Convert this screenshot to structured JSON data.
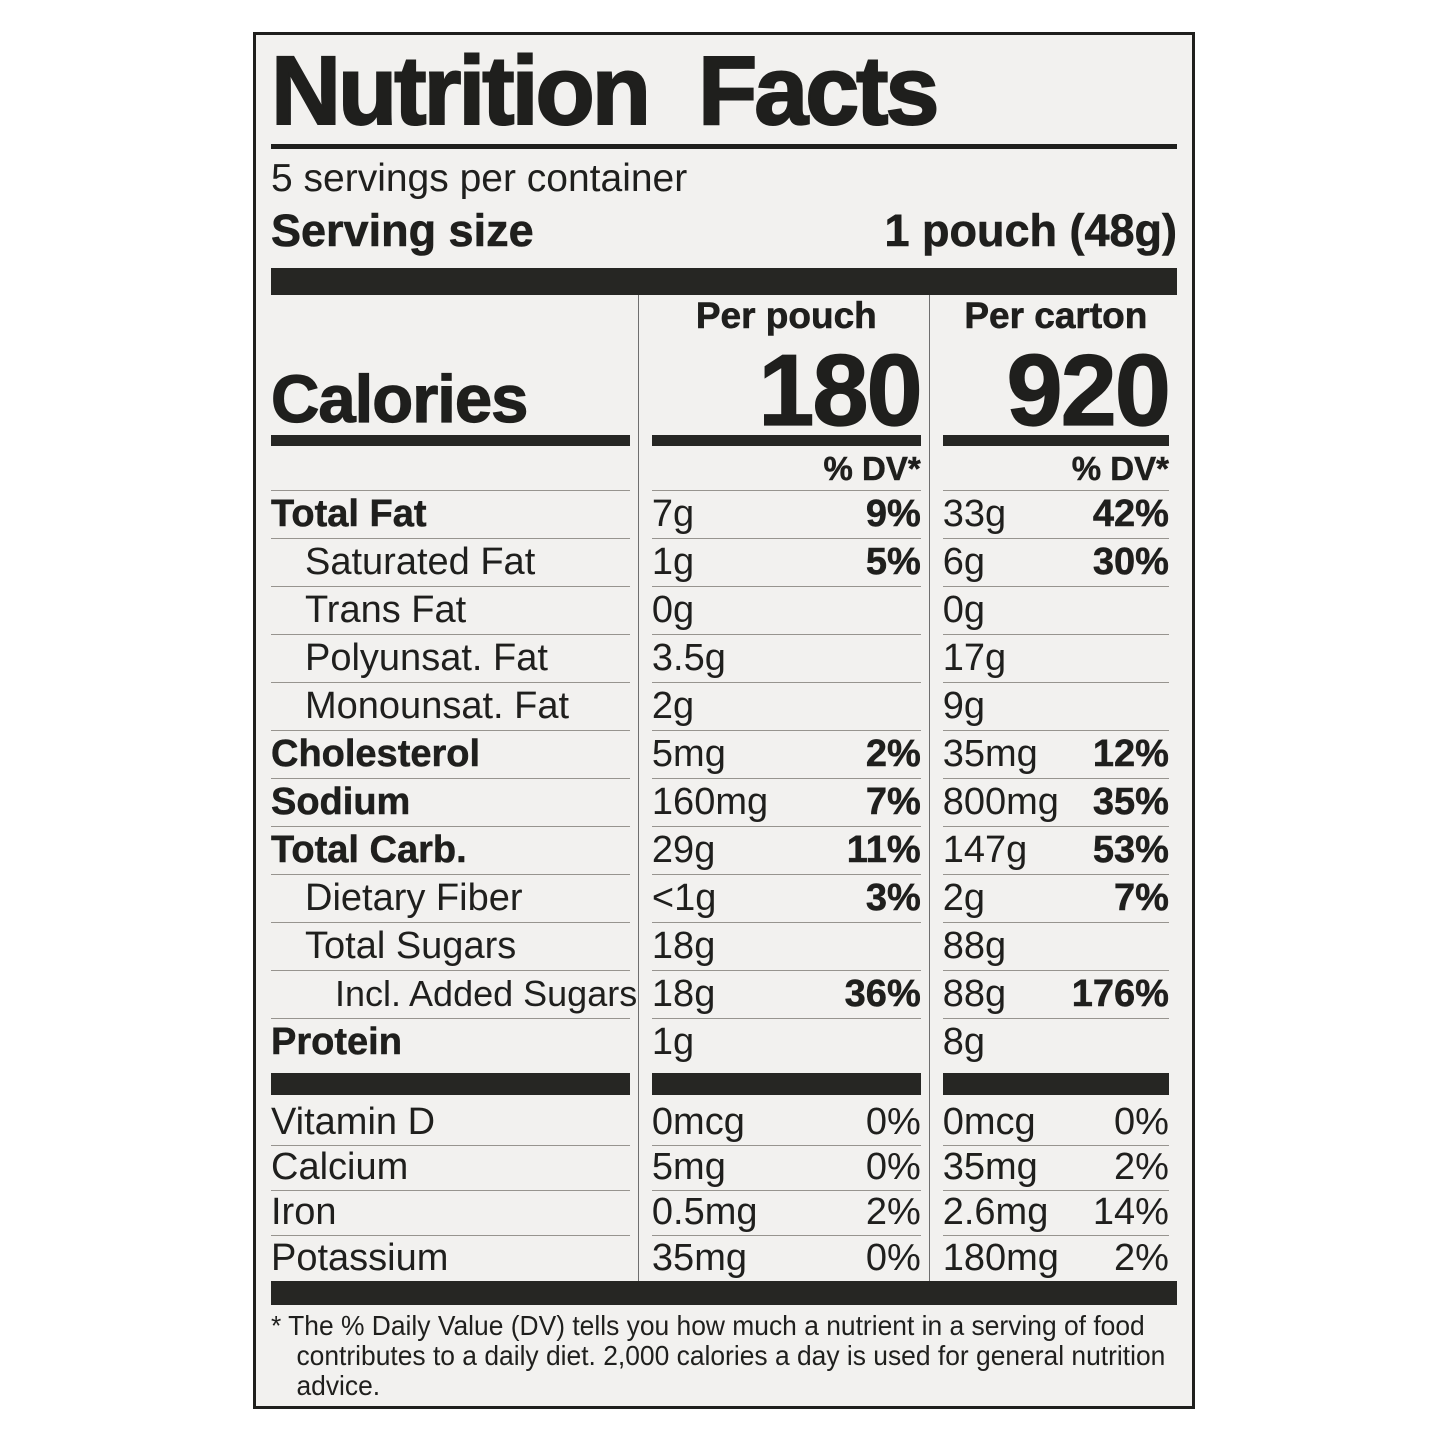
{
  "colors": {
    "label_background": "#f2f1ef",
    "ink": "#1f1f1d",
    "hairline": "#97948f",
    "divider": "#6f6f6f",
    "thick_bar": "#262623"
  },
  "label": {
    "title": "Nutrition Facts",
    "servings_per_container": "5 servings per container",
    "serving_size_label": "Serving size",
    "serving_size_value": "1 pouch (48g)",
    "calories": {
      "label": "Calories",
      "pouch": {
        "header": "Per pouch",
        "value": "180",
        "dv_header": "% DV*"
      },
      "carton": {
        "header": "Per carton",
        "value": "920",
        "dv_header": "% DV*"
      }
    },
    "nutrients": [
      {
        "name": "Total Fat",
        "pouch_amount": "7g",
        "pouch_dv": "9%",
        "carton_amount": "33g",
        "carton_dv": "42%"
      },
      {
        "name": "Saturated Fat",
        "pouch_amount": "1g",
        "pouch_dv": "5%",
        "carton_amount": "6g",
        "carton_dv": "30%"
      },
      {
        "name": "Trans Fat",
        "pouch_amount": "0g",
        "pouch_dv": "",
        "carton_amount": "0g",
        "carton_dv": ""
      },
      {
        "name": "Polyunsat. Fat",
        "pouch_amount": "3.5g",
        "pouch_dv": "",
        "carton_amount": "17g",
        "carton_dv": ""
      },
      {
        "name": "Monounsat. Fat",
        "pouch_amount": "2g",
        "pouch_dv": "",
        "carton_amount": "9g",
        "carton_dv": ""
      },
      {
        "name": "Cholesterol",
        "pouch_amount": "5mg",
        "pouch_dv": "2%",
        "carton_amount": "35mg",
        "carton_dv": "12%"
      },
      {
        "name": "Sodium",
        "pouch_amount": "160mg",
        "pouch_dv": "7%",
        "carton_amount": "800mg",
        "carton_dv": "35%"
      },
      {
        "name": "Total Carb.",
        "pouch_amount": "29g",
        "pouch_dv": "11%",
        "carton_amount": "147g",
        "carton_dv": "53%"
      },
      {
        "name": "Dietary Fiber",
        "pouch_amount": "<1g",
        "pouch_dv": "3%",
        "carton_amount": "2g",
        "carton_dv": "7%"
      },
      {
        "name": "Total Sugars",
        "pouch_amount": "18g",
        "pouch_dv": "",
        "carton_amount": "88g",
        "carton_dv": ""
      },
      {
        "name": "Incl. Added Sugars",
        "pouch_amount": "18g",
        "pouch_dv": "36%",
        "carton_amount": "88g",
        "carton_dv": "176%"
      },
      {
        "name": "Protein",
        "pouch_amount": "1g",
        "pouch_dv": "",
        "carton_amount": "8g",
        "carton_dv": ""
      }
    ],
    "micronutrients": [
      {
        "name": "Vitamin D",
        "pouch_amount": "0mcg",
        "pouch_dv": "0%",
        "carton_amount": "0mcg",
        "carton_dv": "0%"
      },
      {
        "name": "Calcium",
        "pouch_amount": "5mg",
        "pouch_dv": "0%",
        "carton_amount": "35mg",
        "carton_dv": "2%"
      },
      {
        "name": "Iron",
        "pouch_amount": "0.5mg",
        "pouch_dv": "2%",
        "carton_amount": "2.6mg",
        "carton_dv": "14%"
      },
      {
        "name": "Potassium",
        "pouch_amount": "35mg",
        "pouch_dv": "0%",
        "carton_amount": "180mg",
        "carton_dv": "2%"
      }
    ],
    "footnote": {
      "marker": "*",
      "text": "The % Daily Value (DV) tells you how much a nutrient in a serving of food contributes to a daily diet. 2,000 calories a day is used for general nutrition advice."
    }
  }
}
